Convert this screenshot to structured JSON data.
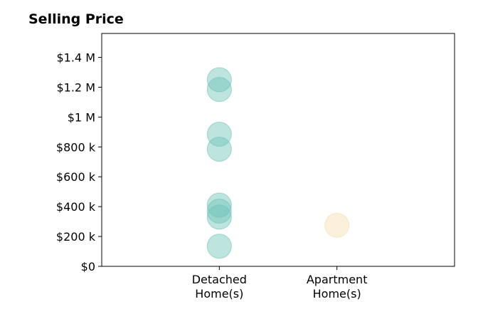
{
  "chart_data": {
    "type": "scatter",
    "title": "Selling Price",
    "xlabel": "",
    "ylabel": "",
    "categories": [
      {
        "line1": "Detached",
        "line2": "Home(s)"
      },
      {
        "line1": "Apartment",
        "line2": "Home(s)"
      }
    ],
    "xlim": [
      0,
      3
    ],
    "ylim": [
      0,
      1560000
    ],
    "yticks": [
      {
        "value": 0,
        "label": "$0"
      },
      {
        "value": 200000,
        "label": "$200 k"
      },
      {
        "value": 400000,
        "label": "$400 k"
      },
      {
        "value": 600000,
        "label": "$600 k"
      },
      {
        "value": 800000,
        "label": "$800 k"
      },
      {
        "value": 1000000,
        "label": "$1 M"
      },
      {
        "value": 1200000,
        "label": "$1.2 M"
      },
      {
        "value": 1400000,
        "label": "$1.4 M"
      }
    ],
    "series": [
      {
        "category_index": 0,
        "color": "#6cc3b6",
        "values": [
          1250000,
          1185000,
          885000,
          785000,
          410000,
          370000,
          330000,
          135000
        ]
      },
      {
        "category_index": 1,
        "color": "#f6deae",
        "values": [
          275000
        ]
      }
    ],
    "grid": false,
    "legend": "none"
  }
}
